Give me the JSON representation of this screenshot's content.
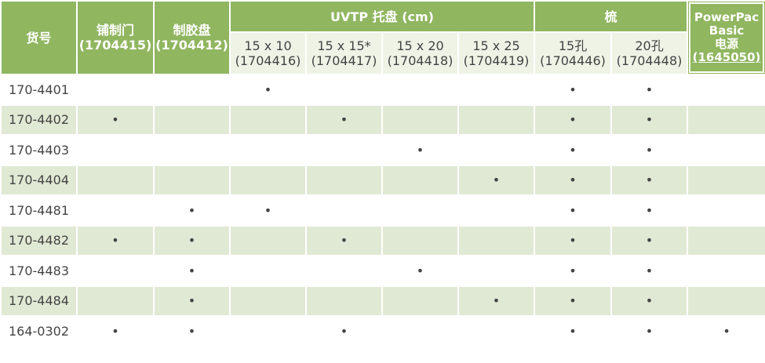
{
  "table": {
    "header": {
      "id": [
        "货号"
      ],
      "groups": [
        {
          "lines": [
            "铺制门",
            "(1704415)"
          ]
        },
        {
          "lines": [
            "制胶盘",
            "(1704412)"
          ]
        },
        {
          "title": "UVTP 托盘 (cm)",
          "columns": [
            [
              "15 x 10",
              "(1704416)"
            ],
            [
              "15 x 15*",
              "(1704417)"
            ],
            [
              "15 x 20",
              "(1704418)"
            ],
            [
              "15 x 25",
              "(1704419)"
            ]
          ]
        },
        {
          "title": "梳",
          "columns": [
            [
              "15孔",
              "(1704446)"
            ],
            [
              "20孔",
              "(1704448)"
            ]
          ]
        },
        {
          "lines": [
            "PowerPac",
            "Basic",
            "电源",
            "(1645050)"
          ]
        }
      ]
    },
    "rows": [
      {
        "id": "170-4401",
        "cells": [
          null,
          null,
          "•",
          null,
          null,
          null,
          "•",
          "•",
          null
        ]
      },
      {
        "id": "170-4402",
        "cells": [
          "•",
          null,
          null,
          "•",
          null,
          null,
          "•",
          "•",
          null
        ]
      },
      {
        "id": "170-4403",
        "cells": [
          null,
          null,
          null,
          null,
          "•",
          null,
          "•",
          "•",
          null
        ]
      },
      {
        "id": "170-4404",
        "cells": [
          null,
          null,
          null,
          null,
          null,
          "•",
          "•",
          "•",
          null
        ]
      },
      {
        "id": "170-4481",
        "cells": [
          null,
          "•",
          "•",
          null,
          null,
          null,
          "•",
          "•",
          null
        ]
      },
      {
        "id": "170-4482",
        "cells": [
          "•",
          "•",
          null,
          "•",
          null,
          null,
          "•",
          "•",
          null
        ]
      },
      {
        "id": "170-4483",
        "cells": [
          null,
          "•",
          null,
          null,
          "•",
          null,
          "•",
          "•",
          null
        ]
      },
      {
        "id": "170-4484",
        "cells": [
          null,
          "•",
          null,
          null,
          null,
          "•",
          "•",
          "•",
          null
        ]
      },
      {
        "id": "164-0302",
        "cells": [
          "•",
          "•",
          null,
          "•",
          null,
          null,
          "•",
          "•",
          "•"
        ]
      }
    ]
  }
}
